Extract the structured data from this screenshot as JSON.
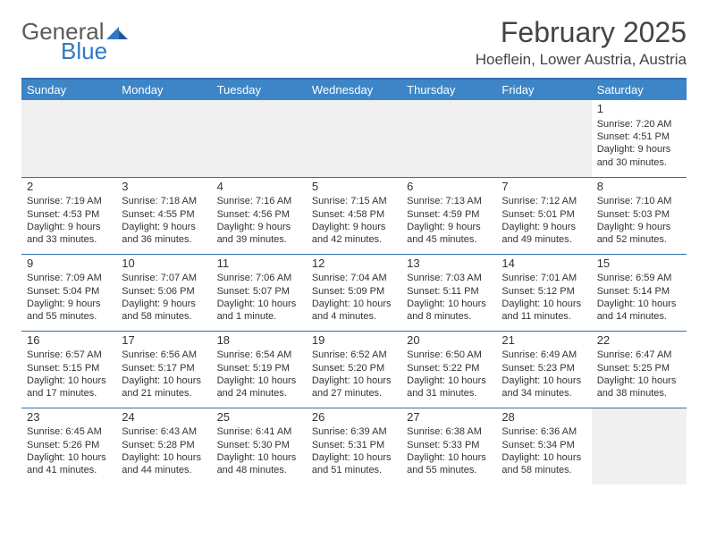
{
  "brand": {
    "word1": "General",
    "word2": "Blue",
    "logo_color": "#2f78c4",
    "text_gray": "#5a5a5a"
  },
  "title": "February 2025",
  "location": "Hoeflein, Lower Austria, Austria",
  "colors": {
    "header_bg": "#3d85c6",
    "rule": "#2f6fb0",
    "empty_bg": "#f0f0f0"
  },
  "day_headers": [
    "Sunday",
    "Monday",
    "Tuesday",
    "Wednesday",
    "Thursday",
    "Friday",
    "Saturday"
  ],
  "weeks": [
    [
      null,
      null,
      null,
      null,
      null,
      null,
      {
        "n": "1",
        "sr": "Sunrise: 7:20 AM",
        "ss": "Sunset: 4:51 PM",
        "dl": "Daylight: 9 hours and 30 minutes."
      }
    ],
    [
      {
        "n": "2",
        "sr": "Sunrise: 7:19 AM",
        "ss": "Sunset: 4:53 PM",
        "dl": "Daylight: 9 hours and 33 minutes."
      },
      {
        "n": "3",
        "sr": "Sunrise: 7:18 AM",
        "ss": "Sunset: 4:55 PM",
        "dl": "Daylight: 9 hours and 36 minutes."
      },
      {
        "n": "4",
        "sr": "Sunrise: 7:16 AM",
        "ss": "Sunset: 4:56 PM",
        "dl": "Daylight: 9 hours and 39 minutes."
      },
      {
        "n": "5",
        "sr": "Sunrise: 7:15 AM",
        "ss": "Sunset: 4:58 PM",
        "dl": "Daylight: 9 hours and 42 minutes."
      },
      {
        "n": "6",
        "sr": "Sunrise: 7:13 AM",
        "ss": "Sunset: 4:59 PM",
        "dl": "Daylight: 9 hours and 45 minutes."
      },
      {
        "n": "7",
        "sr": "Sunrise: 7:12 AM",
        "ss": "Sunset: 5:01 PM",
        "dl": "Daylight: 9 hours and 49 minutes."
      },
      {
        "n": "8",
        "sr": "Sunrise: 7:10 AM",
        "ss": "Sunset: 5:03 PM",
        "dl": "Daylight: 9 hours and 52 minutes."
      }
    ],
    [
      {
        "n": "9",
        "sr": "Sunrise: 7:09 AM",
        "ss": "Sunset: 5:04 PM",
        "dl": "Daylight: 9 hours and 55 minutes."
      },
      {
        "n": "10",
        "sr": "Sunrise: 7:07 AM",
        "ss": "Sunset: 5:06 PM",
        "dl": "Daylight: 9 hours and 58 minutes."
      },
      {
        "n": "11",
        "sr": "Sunrise: 7:06 AM",
        "ss": "Sunset: 5:07 PM",
        "dl": "Daylight: 10 hours and 1 minute."
      },
      {
        "n": "12",
        "sr": "Sunrise: 7:04 AM",
        "ss": "Sunset: 5:09 PM",
        "dl": "Daylight: 10 hours and 4 minutes."
      },
      {
        "n": "13",
        "sr": "Sunrise: 7:03 AM",
        "ss": "Sunset: 5:11 PM",
        "dl": "Daylight: 10 hours and 8 minutes."
      },
      {
        "n": "14",
        "sr": "Sunrise: 7:01 AM",
        "ss": "Sunset: 5:12 PM",
        "dl": "Daylight: 10 hours and 11 minutes."
      },
      {
        "n": "15",
        "sr": "Sunrise: 6:59 AM",
        "ss": "Sunset: 5:14 PM",
        "dl": "Daylight: 10 hours and 14 minutes."
      }
    ],
    [
      {
        "n": "16",
        "sr": "Sunrise: 6:57 AM",
        "ss": "Sunset: 5:15 PM",
        "dl": "Daylight: 10 hours and 17 minutes."
      },
      {
        "n": "17",
        "sr": "Sunrise: 6:56 AM",
        "ss": "Sunset: 5:17 PM",
        "dl": "Daylight: 10 hours and 21 minutes."
      },
      {
        "n": "18",
        "sr": "Sunrise: 6:54 AM",
        "ss": "Sunset: 5:19 PM",
        "dl": "Daylight: 10 hours and 24 minutes."
      },
      {
        "n": "19",
        "sr": "Sunrise: 6:52 AM",
        "ss": "Sunset: 5:20 PM",
        "dl": "Daylight: 10 hours and 27 minutes."
      },
      {
        "n": "20",
        "sr": "Sunrise: 6:50 AM",
        "ss": "Sunset: 5:22 PM",
        "dl": "Daylight: 10 hours and 31 minutes."
      },
      {
        "n": "21",
        "sr": "Sunrise: 6:49 AM",
        "ss": "Sunset: 5:23 PM",
        "dl": "Daylight: 10 hours and 34 minutes."
      },
      {
        "n": "22",
        "sr": "Sunrise: 6:47 AM",
        "ss": "Sunset: 5:25 PM",
        "dl": "Daylight: 10 hours and 38 minutes."
      }
    ],
    [
      {
        "n": "23",
        "sr": "Sunrise: 6:45 AM",
        "ss": "Sunset: 5:26 PM",
        "dl": "Daylight: 10 hours and 41 minutes."
      },
      {
        "n": "24",
        "sr": "Sunrise: 6:43 AM",
        "ss": "Sunset: 5:28 PM",
        "dl": "Daylight: 10 hours and 44 minutes."
      },
      {
        "n": "25",
        "sr": "Sunrise: 6:41 AM",
        "ss": "Sunset: 5:30 PM",
        "dl": "Daylight: 10 hours and 48 minutes."
      },
      {
        "n": "26",
        "sr": "Sunrise: 6:39 AM",
        "ss": "Sunset: 5:31 PM",
        "dl": "Daylight: 10 hours and 51 minutes."
      },
      {
        "n": "27",
        "sr": "Sunrise: 6:38 AM",
        "ss": "Sunset: 5:33 PM",
        "dl": "Daylight: 10 hours and 55 minutes."
      },
      {
        "n": "28",
        "sr": "Sunrise: 6:36 AM",
        "ss": "Sunset: 5:34 PM",
        "dl": "Daylight: 10 hours and 58 minutes."
      },
      null
    ]
  ]
}
